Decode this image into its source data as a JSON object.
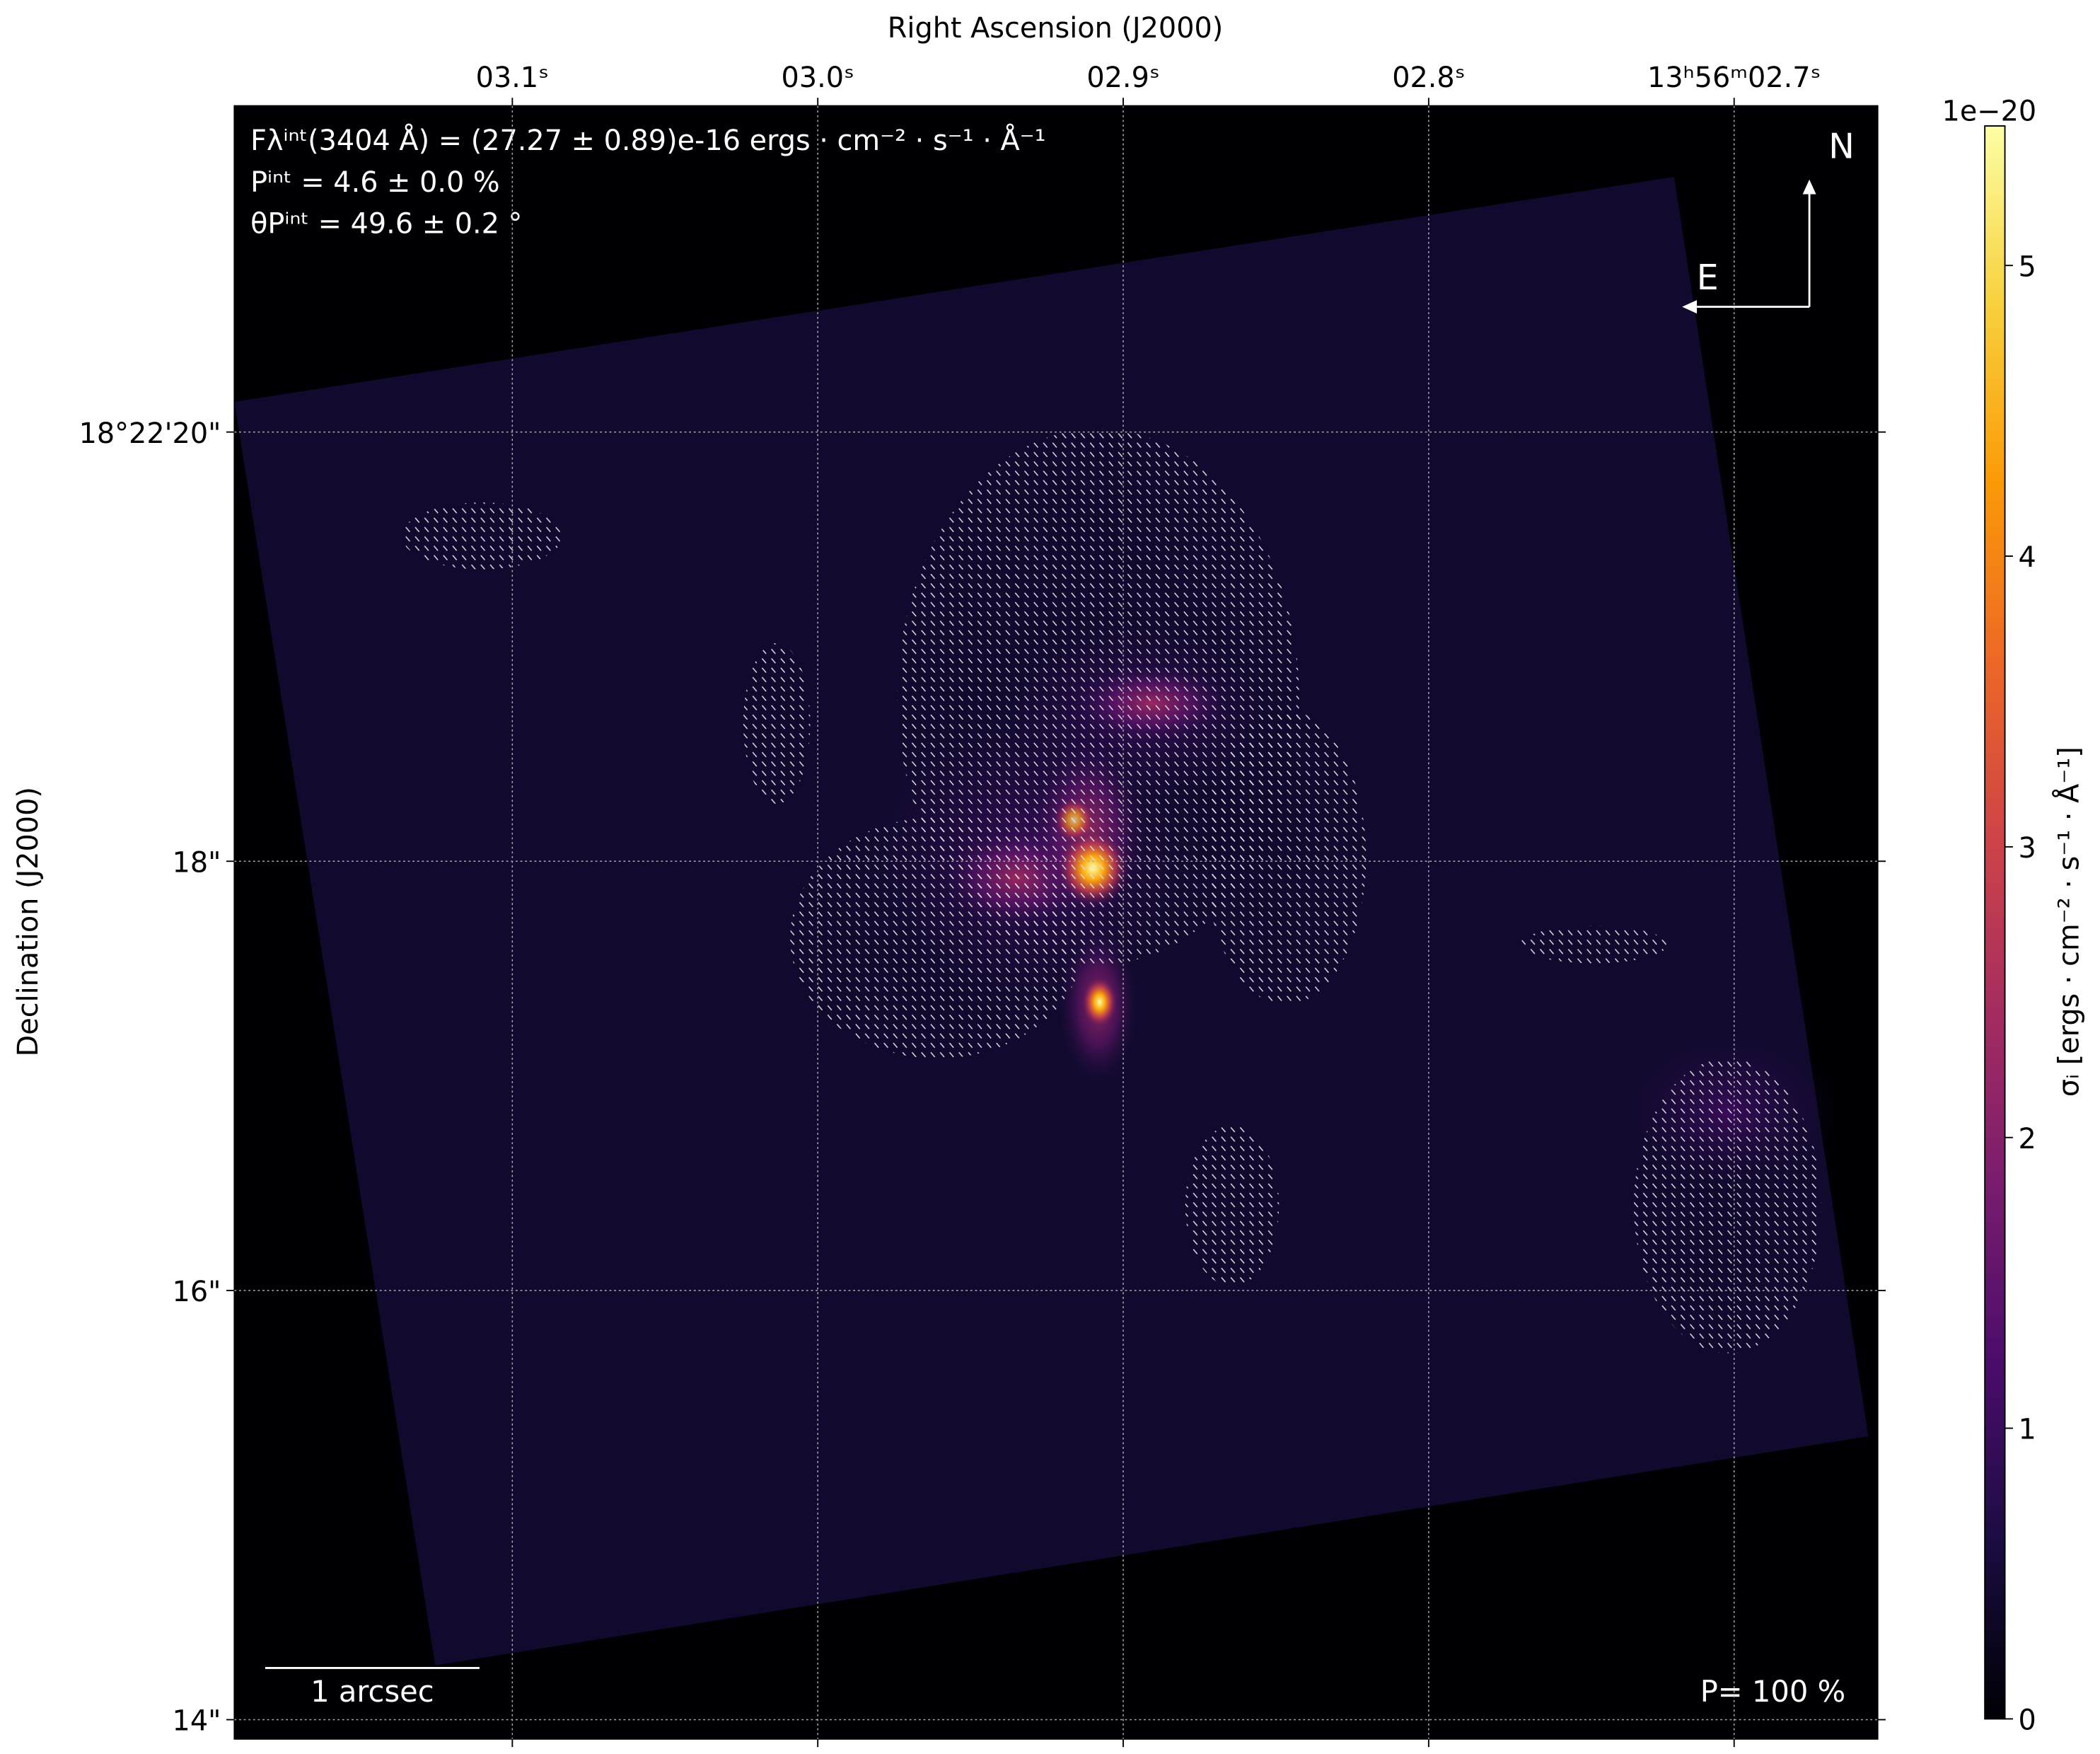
{
  "chart_data": {
    "type": "image",
    "xlabel": "Right Ascension (J2000)",
    "ylabel": "Declination (J2000)",
    "xlim": [
      3.191,
      2.653
    ],
    "xticks": [
      {
        "value": 3.1,
        "label": "03.1ˢ"
      },
      {
        "value": 3.0,
        "label": "03.0ˢ"
      },
      {
        "value": 2.9,
        "label": "02.9ˢ"
      },
      {
        "value": 2.8,
        "label": "02.8ˢ"
      },
      {
        "value": 2.7,
        "label": "13ʰ56ᵐ02.7ˢ"
      }
    ],
    "ylim": [
      13.91,
      21.52
    ],
    "yticks": [
      {
        "value": 20,
        "label": "18°22'20\""
      },
      {
        "value": 18,
        "label": "18\""
      },
      {
        "value": 16,
        "label": "16\""
      },
      {
        "value": 14,
        "label": "14\""
      }
    ],
    "grid": true,
    "colormap": "inferno",
    "colorbar": {
      "label": "σᵢ [ergs · cm⁻² · s⁻¹ · Å⁻¹]",
      "offset_text": "1e−20",
      "lim": [
        0,
        5.48
      ],
      "ticks": [
        0,
        1,
        2,
        3,
        4,
        5
      ]
    },
    "annotations": [
      "Fλⁱⁿᵗ(3404 Å) = (27.27 ± 0.89)e-16 ergs · cm⁻² · s⁻¹ · Å⁻¹",
      "Pⁱⁿᵗ = 4.6 ± 0.0 %",
      "θPⁱⁿᵗ = 49.6 ± 0.2 °"
    ],
    "compass": {
      "north": "N",
      "east": "E"
    },
    "scale_bar": "1 arcsec",
    "vector_scale": "P= 100 %"
  }
}
